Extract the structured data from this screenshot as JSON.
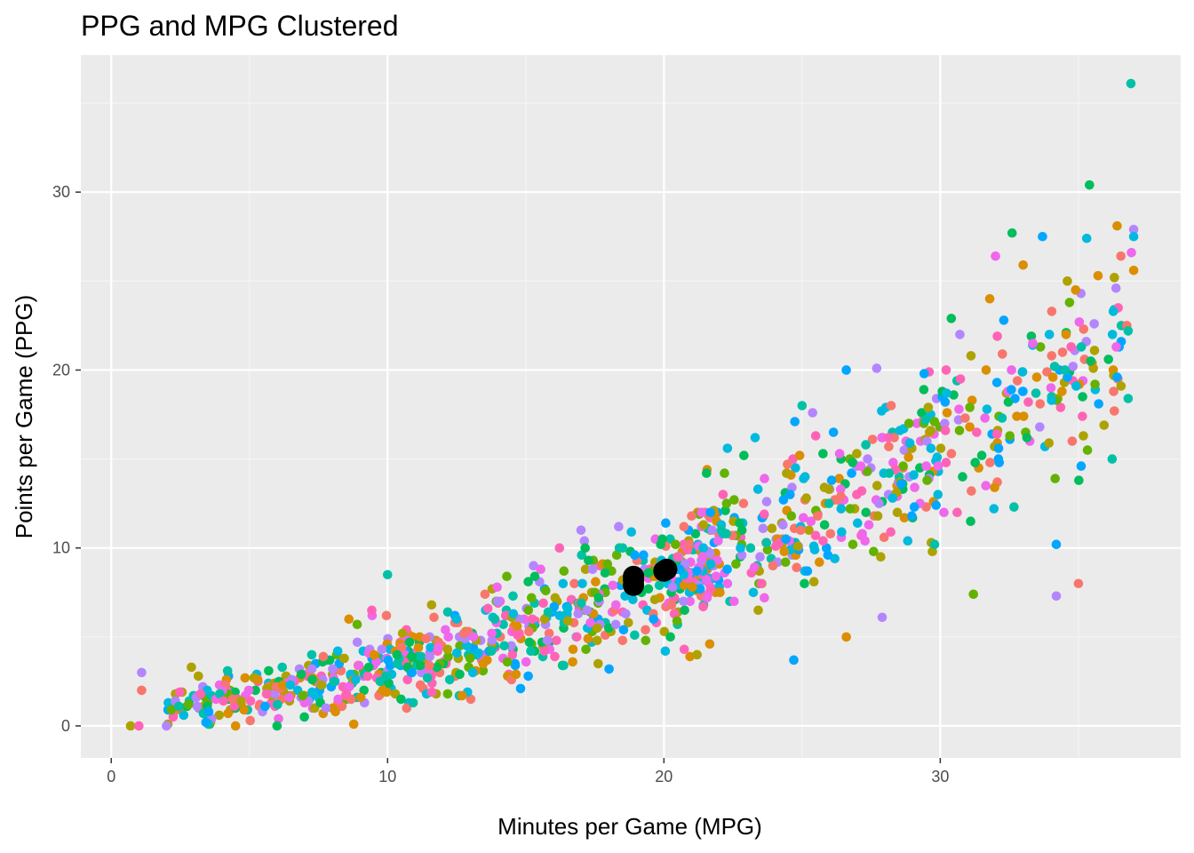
{
  "chart_data": {
    "type": "scatter",
    "title": "PPG and MPG Clustered",
    "xlabel": "Minutes per Game (MPG)",
    "ylabel": "Points per Game (PPG)",
    "xlim": [
      -1.1,
      38.7
    ],
    "ylim": [
      -1.8,
      37.7
    ],
    "x_ticks": [
      0,
      10,
      20,
      30
    ],
    "y_ticks": [
      0,
      10,
      20,
      30
    ],
    "grid": true,
    "legend": "none",
    "colors": {
      "panel_background": "#ebebeb",
      "grid_major": "#ffffff",
      "grid_minor": "#f5f5f5",
      "tick_mark": "#333333",
      "centroid": "#000000",
      "cluster_palette": [
        "#f8766d",
        "#db8e00",
        "#aea200",
        "#64b200",
        "#00bd5c",
        "#00c1a7",
        "#00bade",
        "#00a6ff",
        "#b385ff",
        "#ef67eb",
        "#ff63b6"
      ]
    },
    "points_shown": "approximately 1200 player points colored by cluster (individual positions approximated)",
    "centroids": [
      {
        "x": 18.9,
        "y": 7.9
      },
      {
        "x": 18.9,
        "y": 8.2
      },
      {
        "x": 18.9,
        "y": 8.4
      },
      {
        "x": 20.0,
        "y": 8.7
      },
      {
        "x": 20.1,
        "y": 8.8
      }
    ],
    "highlight_points": [
      {
        "x": 36.9,
        "y": 36.1,
        "color": "#00c1a7"
      },
      {
        "x": 35.4,
        "y": 30.4,
        "color": "#00bd5c"
      },
      {
        "x": 36.4,
        "y": 28.1,
        "color": "#db8e00"
      },
      {
        "x": 37.0,
        "y": 27.9,
        "color": "#b385ff"
      },
      {
        "x": 32.6,
        "y": 27.7,
        "color": "#00bd5c"
      },
      {
        "x": 33.7,
        "y": 27.5,
        "color": "#00a6ff"
      },
      {
        "x": 35.3,
        "y": 27.4,
        "color": "#00bade"
      },
      {
        "x": 37.0,
        "y": 27.5,
        "color": "#00bade"
      },
      {
        "x": 32.0,
        "y": 26.4,
        "color": "#ef67eb"
      },
      {
        "x": 33.0,
        "y": 25.9,
        "color": "#db8e00"
      },
      {
        "x": 37.0,
        "y": 25.6,
        "color": "#db8e00"
      },
      {
        "x": 36.3,
        "y": 25.2,
        "color": "#aea200"
      },
      {
        "x": 34.6,
        "y": 25.0,
        "color": "#aea200"
      },
      {
        "x": 34.9,
        "y": 24.5,
        "color": "#db8e00"
      },
      {
        "x": 32.3,
        "y": 22.8,
        "color": "#00a6ff"
      },
      {
        "x": 30.4,
        "y": 22.9,
        "color": "#00bd5c"
      },
      {
        "x": 36.8,
        "y": 22.2,
        "color": "#00c1a7"
      },
      {
        "x": 36.3,
        "y": 17.7,
        "color": "#f8766d"
      },
      {
        "x": 34.2,
        "y": 7.3,
        "color": "#b385ff"
      },
      {
        "x": 35.0,
        "y": 8.0,
        "color": "#f8766d"
      },
      {
        "x": 34.2,
        "y": 10.2,
        "color": "#00a6ff"
      },
      {
        "x": 31.2,
        "y": 7.4,
        "color": "#64b200"
      },
      {
        "x": 27.7,
        "y": 20.1,
        "color": "#b385ff"
      },
      {
        "x": 26.6,
        "y": 20.0,
        "color": "#00a6ff"
      },
      {
        "x": 25.0,
        "y": 18.0,
        "color": "#00c1a7"
      },
      {
        "x": 23.3,
        "y": 16.2,
        "color": "#00bade"
      },
      {
        "x": 22.3,
        "y": 15.6,
        "color": "#00bade"
      },
      {
        "x": 24.7,
        "y": 3.7,
        "color": "#00a6ff"
      },
      {
        "x": 21.2,
        "y": 4.0,
        "color": "#aea200"
      },
      {
        "x": 26.6,
        "y": 5.0,
        "color": "#db8e00"
      },
      {
        "x": 27.9,
        "y": 6.1,
        "color": "#b385ff"
      },
      {
        "x": 17.0,
        "y": 11.0,
        "color": "#b385ff"
      },
      {
        "x": 10.0,
        "y": 8.5,
        "color": "#00c1a7"
      },
      {
        "x": 8.6,
        "y": 6.0,
        "color": "#db8e00"
      },
      {
        "x": 8.9,
        "y": 5.7,
        "color": "#64b200"
      },
      {
        "x": 0.7,
        "y": 0.0,
        "color": "#aea200"
      },
      {
        "x": 1.0,
        "y": 0.0,
        "color": "#ff63b6"
      },
      {
        "x": 1.1,
        "y": 3.0,
        "color": "#b385ff"
      },
      {
        "x": 1.1,
        "y": 2.0,
        "color": "#f8766d"
      },
      {
        "x": 6.0,
        "y": 0.0,
        "color": "#00bd5c"
      },
      {
        "x": 4.5,
        "y": 0.0,
        "color": "#db8e00"
      },
      {
        "x": 2.0,
        "y": 0.0,
        "color": "#b385ff"
      },
      {
        "x": 2.9,
        "y": 3.3,
        "color": "#aea200"
      }
    ]
  }
}
